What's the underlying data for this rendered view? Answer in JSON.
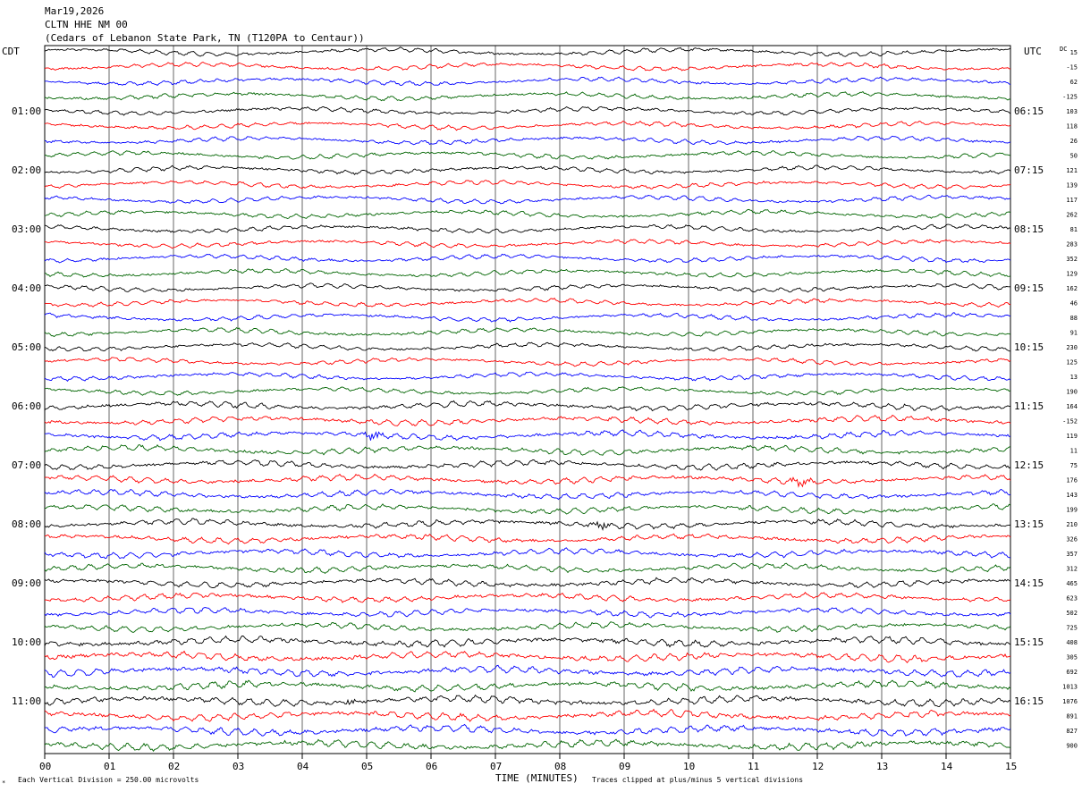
{
  "header": {
    "date": "Mar19,2026",
    "station": "CLTN HHE NM 00",
    "location": "(Cedars of Lebanon State Park, TN (T120PA to Centaur))"
  },
  "axis": {
    "left_tz": "CDT",
    "right_tz": "UTC",
    "dc_label": "DC",
    "xlabel": "TIME (MINUTES)",
    "xticks": [
      "00",
      "01",
      "02",
      "03",
      "04",
      "05",
      "06",
      "07",
      "08",
      "09",
      "10",
      "11",
      "12",
      "13",
      "14",
      "15"
    ]
  },
  "footer": {
    "scale_note": "Each Vertical Division =  250.00 microvolts",
    "clip_note": "Traces clipped at plus/minus 5 vertical divisions"
  },
  "colors": {
    "cycle": [
      "#000000",
      "#ff0000",
      "#0000ff",
      "#006400"
    ]
  },
  "chart_data": {
    "type": "helicorder",
    "x_range_minutes": [
      0,
      15
    ],
    "lines_per_hour": 4,
    "left_hour_labels": [
      "01:00",
      "02:00",
      "03:00",
      "04:00",
      "05:00",
      "06:00",
      "07:00",
      "08:00",
      "09:00",
      "10:00",
      "11:00"
    ],
    "right_hour_labels": [
      "06:15",
      "07:15",
      "08:15",
      "09:15",
      "10:15",
      "11:15",
      "12:15",
      "13:15",
      "14:15",
      "15:15",
      "16:15"
    ],
    "dc_offsets": [
      "15",
      "-15",
      "62",
      "-125",
      "103",
      "118",
      "26",
      "50",
      "121",
      "139",
      "117",
      "262",
      "81",
      "283",
      "352",
      "129",
      "162",
      "46",
      "88",
      "91",
      "230",
      "125",
      "13",
      "190",
      "164",
      "-152",
      "119",
      "11",
      "75",
      "176",
      "143",
      "199",
      "210",
      "326",
      "357",
      "312",
      "465",
      "623",
      "502",
      "725",
      "408",
      "305",
      "692",
      "1013",
      "1076",
      "891",
      "827",
      "900"
    ],
    "events": [
      {
        "trace": 44,
        "minute": 4.75,
        "desc": "spike"
      },
      {
        "trace": 29,
        "minute": 11.75,
        "desc": "burst"
      },
      {
        "trace": 32,
        "minute": 8.65,
        "desc": "burst"
      },
      {
        "trace": 26,
        "minute": 5.1,
        "desc": "burst"
      }
    ]
  }
}
